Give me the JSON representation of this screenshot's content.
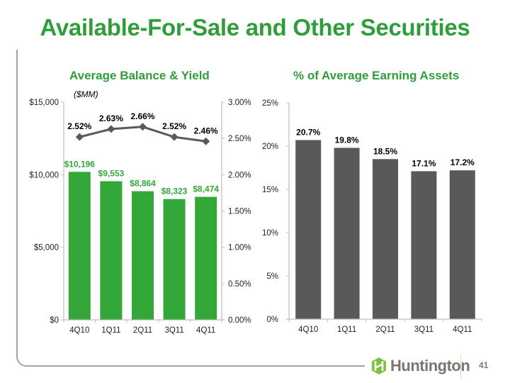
{
  "title": "Available-For-Sale and Other Securities",
  "colors": {
    "brand_green": "#2f9e3a",
    "bar_green": "#33a838",
    "bar_dark": "#595959",
    "line": "#595959",
    "axis": "#bfbfbf"
  },
  "footer": {
    "logo_text": "Huntington",
    "page_number": "41"
  },
  "chart_data": [
    {
      "type": "bar+line",
      "title": "Average Balance & Yield",
      "units_label": "($MM)",
      "categories": [
        "4Q10",
        "1Q11",
        "2Q11",
        "3Q11",
        "4Q11"
      ],
      "series": [
        {
          "name": "Average Balance",
          "type": "bar",
          "axis": "left",
          "values": [
            10196,
            9553,
            8864,
            8323,
            8474
          ],
          "labels": [
            "$10,196",
            "$9,553",
            "$8,864",
            "$8,323",
            "$8,474"
          ]
        },
        {
          "name": "Yield",
          "type": "line",
          "axis": "right",
          "values": [
            2.52,
            2.63,
            2.66,
            2.52,
            2.46
          ],
          "labels": [
            "2.52%",
            "2.63%",
            "2.66%",
            "2.52%",
            "2.46%"
          ]
        }
      ],
      "ylim": [
        0,
        15000
      ],
      "yticks": [
        0,
        5000,
        10000,
        15000
      ],
      "ytick_labels": [
        "$0",
        "$5,000",
        "$10,000",
        "$15,000"
      ],
      "y2lim": [
        0,
        3.0
      ],
      "y2ticks": [
        0,
        0.5,
        1.0,
        1.5,
        2.0,
        2.5,
        3.0
      ],
      "y2tick_labels": [
        "0.00%",
        "0.50%",
        "1.00%",
        "1.50%",
        "2.00%",
        "2.50%",
        "3.00%"
      ],
      "grid": false
    },
    {
      "type": "bar",
      "title": "% of Average Earning Assets",
      "categories": [
        "4Q10",
        "1Q11",
        "2Q11",
        "3Q11",
        "4Q11"
      ],
      "values": [
        20.7,
        19.8,
        18.5,
        17.1,
        17.2
      ],
      "labels": [
        "20.7%",
        "19.8%",
        "18.5%",
        "17.1%",
        "17.2%"
      ],
      "ylim": [
        0,
        25
      ],
      "yticks": [
        0,
        5,
        10,
        15,
        20,
        25
      ],
      "ytick_labels": [
        "0%",
        "5%",
        "10%",
        "15%",
        "20%",
        "25%"
      ],
      "grid": false
    }
  ]
}
